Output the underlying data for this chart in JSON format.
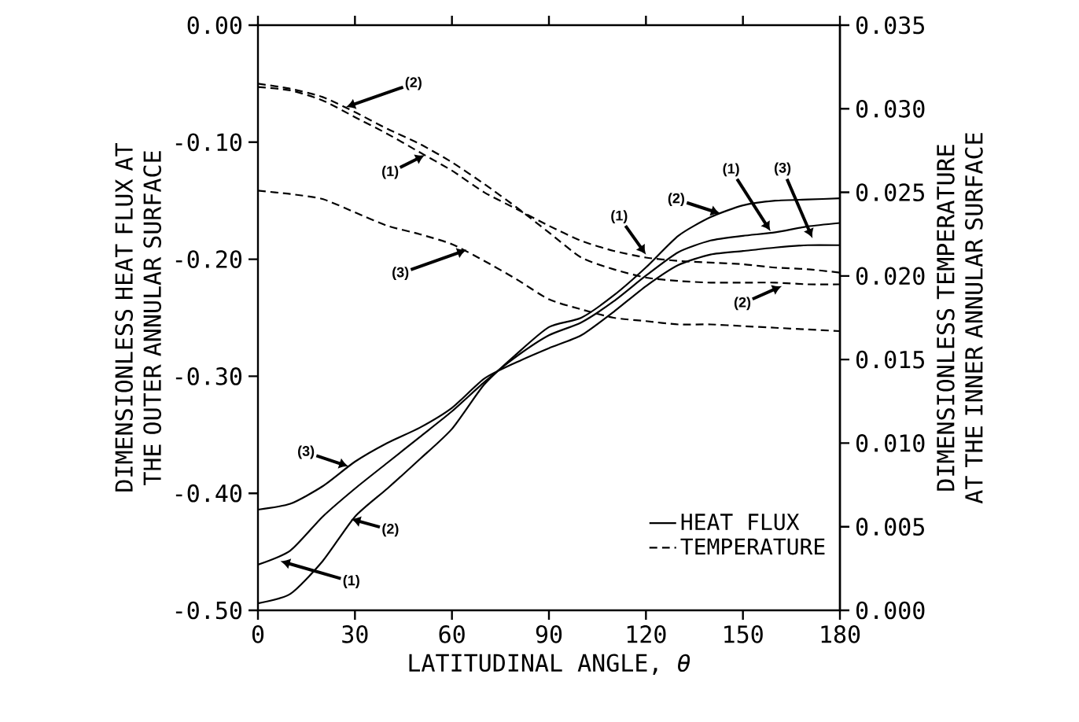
{
  "chart_data": {
    "type": "line",
    "xlabel": "LATITUDINAL ANGLE, *θ*",
    "ylabel": "DIMENSIONLESS HEAT FLUX AT THE OUTER ANNULAR SURFACE",
    "y2label": "DIMENSIONLESS TEMPERATURE AT THE INNER ANNULAR SURFACE",
    "x": [
      0,
      10,
      20,
      30,
      40,
      50,
      60,
      70,
      80,
      90,
      100,
      110,
      120,
      130,
      140,
      150,
      160,
      170,
      180
    ],
    "series": [
      {
        "name": "HEAT FLUX",
        "color": "#000000",
        "line_style": "solid",
        "values": [
          -0.461,
          -0.449,
          -0.42,
          -0.396,
          -0.374,
          -0.352,
          -0.33,
          -0.305,
          -0.283,
          -0.265,
          -0.254,
          -0.236,
          -0.214,
          -0.194,
          -0.184,
          -0.18,
          -0.177,
          -0.172,
          -0.169
        ]
      },
      {
        "color": "#000000",
        "line_style": "solid",
        "values": [
          -0.494,
          -0.486,
          -0.458,
          -0.42,
          -0.396,
          -0.371,
          -0.345,
          -0.307,
          -0.281,
          -0.258,
          -0.25,
          -0.231,
          -0.207,
          -0.18,
          -0.164,
          -0.154,
          -0.15,
          -0.149,
          -0.148
        ]
      },
      {
        "color": "#000000",
        "line_style": "solid",
        "values": [
          -0.414,
          -0.409,
          -0.394,
          -0.373,
          -0.357,
          -0.344,
          -0.327,
          -0.302,
          -0.288,
          -0.276,
          -0.265,
          -0.245,
          -0.223,
          -0.205,
          -0.196,
          -0.193,
          -0.19,
          -0.188,
          -0.188
        ]
      },
      {
        "name": "TEMPERATURE",
        "color": "#000000",
        "line_style": "dashed",
        "axis": "y2",
        "values": [
          0.0313,
          0.0311,
          0.0305,
          0.0295,
          0.0285,
          0.0274,
          0.0263,
          0.025,
          0.024,
          0.023,
          0.0221,
          0.0215,
          0.0211,
          0.0209,
          0.0208,
          0.0207,
          0.0205,
          0.0204,
          0.0202
        ]
      },
      {
        "color": "#000000",
        "line_style": "dashed",
        "axis": "y2",
        "values": [
          0.0315,
          0.0312,
          0.0307,
          0.0298,
          0.0288,
          0.0279,
          0.0268,
          0.0255,
          0.0241,
          0.0226,
          0.0211,
          0.0204,
          0.0199,
          0.0197,
          0.0196,
          0.0196,
          0.0196,
          0.0195,
          0.0195
        ]
      },
      {
        "color": "#000000",
        "line_style": "dashed",
        "axis": "y2",
        "values": [
          0.0251,
          0.0249,
          0.0246,
          0.0238,
          0.023,
          0.0225,
          0.0219,
          0.0209,
          0.0198,
          0.0186,
          0.018,
          0.0175,
          0.0173,
          0.0171,
          0.0171,
          0.017,
          0.0169,
          0.0168,
          0.0167
        ]
      }
    ],
    "xlim": [
      0,
      180
    ],
    "xticks": [
      0,
      30,
      60,
      90,
      120,
      150,
      180
    ],
    "ylim": [
      -0.5,
      0
    ],
    "yticks": [
      {
        "value": -0.5,
        "label": "-0.50"
      },
      {
        "value": -0.4,
        "label": "-0.40"
      },
      {
        "value": -0.3,
        "label": "-0.30"
      },
      {
        "value": -0.2,
        "label": "-0.20"
      },
      {
        "value": -0.1,
        "label": "-0.10"
      },
      {
        "value": 0,
        "label": "0.00"
      }
    ],
    "y2lim": [
      0,
      0.035
    ],
    "y2ticks": [
      {
        "value": 0,
        "label": "0.000"
      },
      {
        "value": 0.005,
        "label": "0.005"
      },
      {
        "value": 0.01,
        "label": "0.010"
      },
      {
        "value": 0.015,
        "label": "0.015"
      },
      {
        "value": 0.02,
        "label": "0.020"
      },
      {
        "value": 0.025,
        "label": "0.025"
      },
      {
        "value": 0.03,
        "label": "0.030"
      },
      {
        "value": 0.035,
        "label": "0.035"
      }
    ],
    "legend": "bottom right",
    "annotations": [
      {
        "text": "(2)",
        "x": 27.2,
        "y": -0.07
      },
      {
        "text": "(1)",
        "x": 51.6,
        "y": -0.111
      },
      {
        "text": "(3)",
        "x": 64.5,
        "y": -0.192
      },
      {
        "text": "(1)",
        "x": 120,
        "y": -0.196
      },
      {
        "text": "(2)",
        "x": 162,
        "y": -0.223
      },
      {
        "text": "(2)",
        "x": 143,
        "y": -0.161
      },
      {
        "text": "(1)",
        "x": 158.5,
        "y": -0.176
      },
      {
        "text": "(3)",
        "x": 171.5,
        "y": -0.182
      },
      {
        "text": "(3)",
        "x": 28.0,
        "y": -0.377
      },
      {
        "text": "(2)",
        "x": 28.8,
        "y": -0.422
      },
      {
        "text": "(1)",
        "x": 7.0,
        "y": -0.458
      }
    ]
  }
}
